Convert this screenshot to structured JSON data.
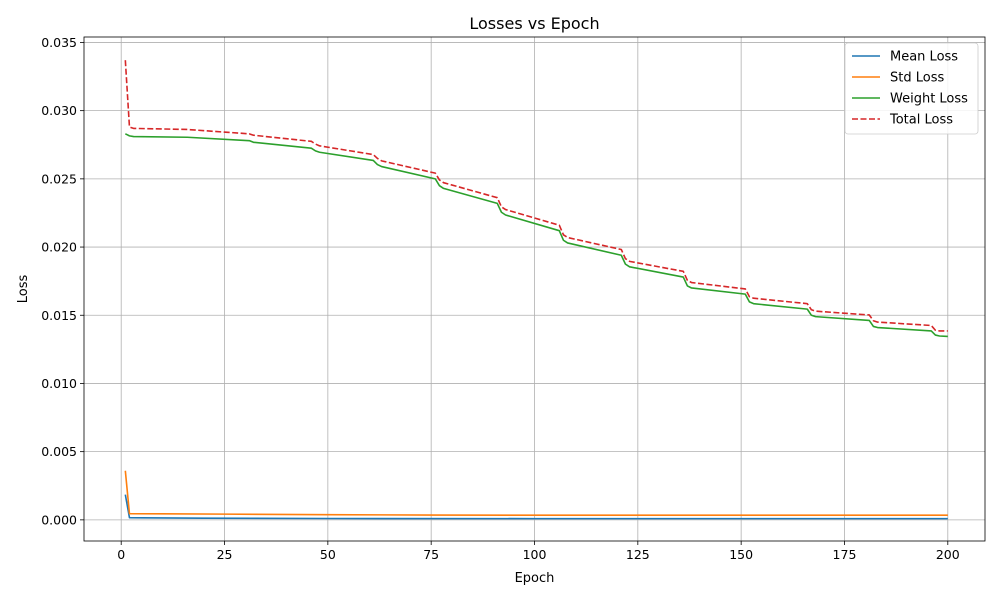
{
  "chart_data": {
    "type": "line",
    "title": "Losses vs Epoch",
    "xlabel": "Epoch",
    "ylabel": "Loss",
    "xlim": [
      -9,
      209
    ],
    "ylim": [
      -0.00155,
      0.0354
    ],
    "xticks": [
      0,
      25,
      50,
      75,
      100,
      125,
      150,
      175,
      200
    ],
    "xtick_labels": [
      "0",
      "25",
      "50",
      "75",
      "100",
      "125",
      "150",
      "175",
      "200"
    ],
    "yticks": [
      0.0,
      0.005,
      0.01,
      0.015,
      0.02,
      0.025,
      0.03,
      0.035
    ],
    "ytick_labels": [
      "0.000",
      "0.005",
      "0.010",
      "0.015",
      "0.020",
      "0.025",
      "0.030",
      "0.035"
    ],
    "grid": true,
    "legend_position": "top-right",
    "series": [
      {
        "name": "Mean Loss",
        "color": "#1f77b4",
        "style": "solid",
        "x": [
          1,
          2,
          5,
          10,
          20,
          50,
          100,
          150,
          200
        ],
        "y": [
          0.00185,
          0.00016,
          0.00015,
          0.00014,
          0.00012,
          0.0001,
          9e-05,
          9e-05,
          9e-05
        ]
      },
      {
        "name": "Std Loss",
        "color": "#ff7f0e",
        "style": "solid",
        "x": [
          1,
          2,
          10,
          25,
          50,
          75,
          100,
          150,
          200
        ],
        "y": [
          0.0036,
          0.00045,
          0.00044,
          0.00042,
          0.00038,
          0.00035,
          0.00034,
          0.00034,
          0.00034
        ]
      },
      {
        "name": "Weight Loss",
        "color": "#2ca02c",
        "style": "solid",
        "x": [
          1,
          2,
          3,
          16,
          31,
          32,
          46,
          47,
          48,
          61,
          62,
          63,
          76,
          77,
          78,
          91,
          92,
          93,
          106,
          107,
          108,
          121,
          122,
          123,
          136,
          137,
          138,
          151,
          152,
          153,
          166,
          167,
          168,
          181,
          182,
          183,
          196,
          197,
          198,
          200
        ],
        "y": [
          0.0283,
          0.02815,
          0.0281,
          0.02805,
          0.0278,
          0.02768,
          0.02725,
          0.02705,
          0.02695,
          0.02635,
          0.02605,
          0.0259,
          0.025,
          0.0245,
          0.0243,
          0.0232,
          0.02255,
          0.02235,
          0.0212,
          0.0205,
          0.0203,
          0.0194,
          0.01875,
          0.01855,
          0.0178,
          0.01715,
          0.017,
          0.01655,
          0.01598,
          0.01585,
          0.01545,
          0.015,
          0.0149,
          0.01462,
          0.01418,
          0.0141,
          0.01385,
          0.01355,
          0.01348,
          0.01345
        ]
      },
      {
        "name": "Total Loss",
        "color": "#d62728",
        "style": "dashed",
        "x": [
          1,
          2,
          3,
          16,
          31,
          32,
          46,
          47,
          48,
          61,
          62,
          63,
          76,
          77,
          78,
          91,
          92,
          93,
          106,
          107,
          108,
          121,
          122,
          123,
          136,
          137,
          138,
          151,
          152,
          153,
          166,
          167,
          168,
          181,
          182,
          183,
          196,
          197,
          198,
          200
        ],
        "y": [
          0.0337,
          0.0288,
          0.0287,
          0.02862,
          0.0283,
          0.0282,
          0.02775,
          0.02755,
          0.02742,
          0.02678,
          0.0265,
          0.02632,
          0.02542,
          0.02492,
          0.02472,
          0.02362,
          0.02295,
          0.02275,
          0.0216,
          0.0209,
          0.0207,
          0.01982,
          0.01915,
          0.01895,
          0.01822,
          0.01755,
          0.0174,
          0.01693,
          0.01636,
          0.01625,
          0.01585,
          0.0154,
          0.0153,
          0.01502,
          0.0146,
          0.0145,
          0.01425,
          0.0139,
          0.01385,
          0.01385
        ]
      }
    ]
  }
}
